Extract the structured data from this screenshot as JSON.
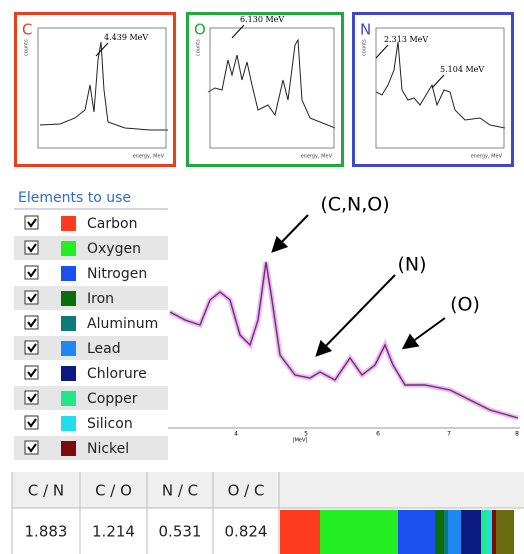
{
  "panels": [
    {
      "label": "C",
      "color": "#e8401c",
      "annotations": [
        "4.439 MeV"
      ],
      "y_label": "counts",
      "x_label": "energy, MeV"
    },
    {
      "label": "O",
      "color": "#1faa3c",
      "annotations": [
        "6.130 MeV"
      ],
      "y_label": "counts",
      "x_label": "energy, MeV"
    },
    {
      "label": "N",
      "color": "#3f48cc",
      "annotations": [
        "2.313 MeV",
        "5.104 MeV"
      ],
      "y_label": "counts",
      "x_label": "energy, MeV"
    }
  ],
  "elements": {
    "title": "Elements to use",
    "items": [
      {
        "name": "Carbon",
        "color": "#ff3b1f",
        "checked": true
      },
      {
        "name": "Oxygen",
        "color": "#22ee22",
        "checked": true
      },
      {
        "name": "Nitrogen",
        "color": "#1a4ff0",
        "checked": true
      },
      {
        "name": "Iron",
        "color": "#0b6e0b",
        "checked": true
      },
      {
        "name": "Aluminum",
        "color": "#0e7a7a",
        "checked": true
      },
      {
        "name": "Lead",
        "color": "#1e88f0",
        "checked": true
      },
      {
        "name": "Chlorure",
        "color": "#0a1a80",
        "checked": true
      },
      {
        "name": "Copper",
        "color": "#22e88a",
        "checked": true
      },
      {
        "name": "Silicon",
        "color": "#22ddee",
        "checked": true
      },
      {
        "name": "Nickel",
        "color": "#7a0c0c",
        "checked": true
      }
    ]
  },
  "spectrum": {
    "x_ticks": [
      "4",
      "5",
      "6",
      "7",
      "8"
    ],
    "x_unit": "[MeV]",
    "annotations": [
      "(C,N,O)",
      "(N)",
      "(O)"
    ]
  },
  "ratios": {
    "headers": [
      "C / N",
      "C / O",
      "N / C",
      "O / C"
    ],
    "values": [
      "1.883",
      "1.214",
      "0.531",
      "0.824"
    ]
  }
}
